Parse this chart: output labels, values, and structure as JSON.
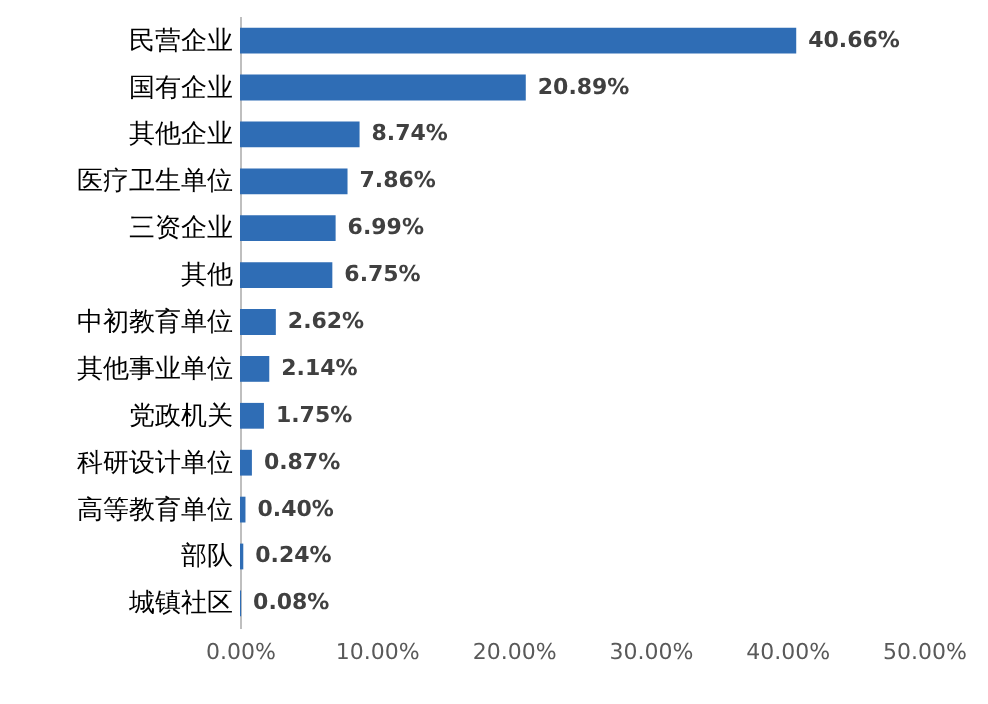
{
  "chart_data": {
    "type": "bar",
    "orientation": "horizontal",
    "categories": [
      "民营企业",
      "国有企业",
      "其他企业",
      "医疗卫生单位",
      "三资企业",
      "其他",
      "中初教育单位",
      "其他事业单位",
      "党政机关",
      "科研设计单位",
      "高等教育单位",
      "部队",
      "城镇社区"
    ],
    "values": [
      40.66,
      20.89,
      8.74,
      7.86,
      6.99,
      6.75,
      2.62,
      2.14,
      1.75,
      0.87,
      0.4,
      0.24,
      0.08
    ],
    "value_labels": [
      "40.66%",
      "20.89%",
      "8.74%",
      "7.86%",
      "6.99%",
      "6.75%",
      "2.62%",
      "2.14%",
      "1.75%",
      "0.87%",
      "0.40%",
      "0.24%",
      "0.08%"
    ],
    "color": "#2f6db5",
    "xlim": [
      0,
      50
    ],
    "xticks": [
      {
        "value": 0,
        "label": "0.00%"
      },
      {
        "value": 10,
        "label": "10.00%"
      },
      {
        "value": 20,
        "label": "20.00%"
      },
      {
        "value": 30,
        "label": "30.00%"
      },
      {
        "value": 40,
        "label": "40.00%"
      },
      {
        "value": 50,
        "label": "50.00%"
      }
    ],
    "grid": false
  }
}
